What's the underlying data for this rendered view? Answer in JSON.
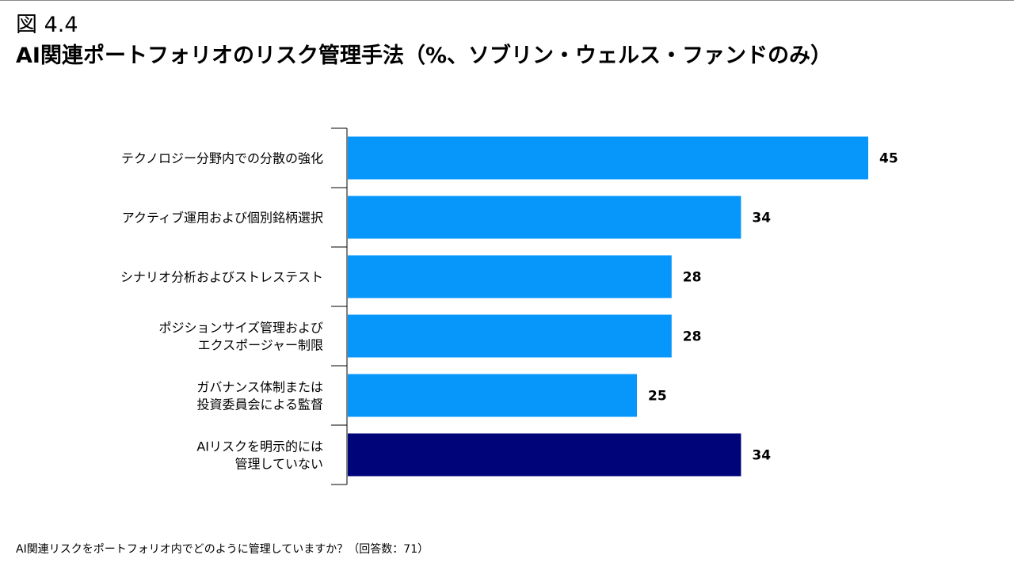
{
  "figure_label": "図 4.4",
  "title": "AI関連ポートフォリオのリスク管理手法（%、ソブリン・ウェルス・ファンドのみ）",
  "footnote": "AI関連リスクをポートフォリオ内でどのように管理していますか？（回答数：71）",
  "colors": {
    "bar": "#0797FB",
    "highlight_bar": "#000479",
    "axis": "#000000"
  },
  "chart_data": {
    "type": "bar",
    "orientation": "horizontal",
    "categories": [
      [
        "テクノロジー分野内での分散の強化"
      ],
      [
        "アクティブ運用および個別銘柄選択"
      ],
      [
        "シナリオ分析およびストレステスト"
      ],
      [
        "ポジションサイズ管理および",
        "エクスポージャー制限"
      ],
      [
        "ガバナンス体制または",
        "投資委員会による監督"
      ],
      [
        "AIリスクを明示的には",
        "管理していない"
      ]
    ],
    "values": [
      45,
      34,
      28,
      28,
      25,
      34
    ],
    "highlight_index": 5,
    "xlim": [
      0,
      50
    ],
    "grid": false,
    "legend": false
  }
}
